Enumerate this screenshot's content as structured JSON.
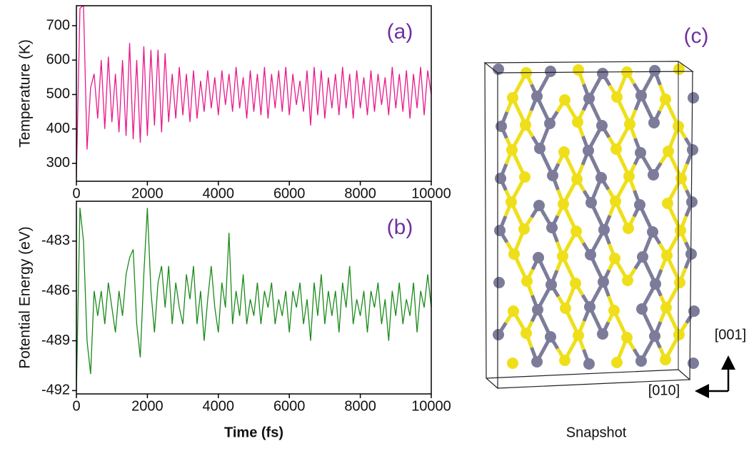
{
  "chart_data": [
    {
      "type": "line",
      "ylabel": "Temperature (K)",
      "annotation": "(a)",
      "color": "#e8198b",
      "xlim": [
        0,
        10000
      ],
      "xticks": [
        0,
        2000,
        4000,
        6000,
        8000,
        10000
      ],
      "ylim": [
        248,
        758
      ],
      "yticks": [
        300,
        400,
        500,
        600,
        700
      ],
      "x": [
        0,
        100,
        200,
        300,
        400,
        500,
        600,
        700,
        800,
        900,
        1000,
        1100,
        1200,
        1300,
        1400,
        1500,
        1600,
        1700,
        1800,
        1900,
        2000,
        2100,
        2200,
        2300,
        2400,
        2500,
        2600,
        2700,
        2800,
        2900,
        3000,
        3100,
        3200,
        3300,
        3400,
        3500,
        3600,
        3700,
        3800,
        3900,
        4000,
        4100,
        4200,
        4300,
        4400,
        4500,
        4600,
        4700,
        4800,
        4900,
        5000,
        5100,
        5200,
        5300,
        5400,
        5500,
        5600,
        5700,
        5800,
        5900,
        6000,
        6100,
        6200,
        6300,
        6400,
        6500,
        6600,
        6700,
        6800,
        6900,
        7000,
        7100,
        7200,
        7300,
        7400,
        7500,
        7600,
        7700,
        7800,
        7900,
        8000,
        8100,
        8200,
        8300,
        8400,
        8500,
        8600,
        8700,
        8800,
        8900,
        9000,
        9100,
        9200,
        9300,
        9400,
        9500,
        9600,
        9700,
        9800,
        9900,
        10000
      ],
      "values": [
        260,
        750,
        760,
        340,
        520,
        560,
        430,
        600,
        400,
        610,
        420,
        560,
        390,
        600,
        380,
        650,
        370,
        600,
        360,
        640,
        380,
        630,
        410,
        630,
        390,
        620,
        420,
        560,
        430,
        580,
        440,
        560,
        420,
        570,
        430,
        540,
        450,
        570,
        460,
        550,
        440,
        570,
        470,
        560,
        450,
        580,
        460,
        550,
        430,
        570,
        450,
        560,
        440,
        580,
        430,
        560,
        460,
        570,
        450,
        580,
        440,
        560,
        470,
        540,
        450,
        570,
        410,
        580,
        440,
        570,
        430,
        550,
        460,
        560,
        440,
        580,
        460,
        560,
        430,
        570,
        460,
        550,
        440,
        570,
        450,
        560,
        470,
        550,
        440,
        580,
        460,
        560,
        450,
        570,
        430,
        560,
        460,
        580,
        440,
        570,
        500
      ]
    },
    {
      "type": "line",
      "ylabel": "Potential Energy (eV)",
      "xlabel": "Time (fs)",
      "annotation": "(b)",
      "color": "#1a8a1a",
      "xlim": [
        0,
        10000
      ],
      "xticks": [
        0,
        2000,
        4000,
        6000,
        8000,
        10000
      ],
      "ylim": [
        -492.2,
        -480.6
      ],
      "yticks": [
        -483,
        -486,
        -489,
        -492
      ],
      "x": [
        0,
        100,
        200,
        300,
        400,
        500,
        600,
        700,
        800,
        900,
        1000,
        1100,
        1200,
        1300,
        1400,
        1500,
        1600,
        1700,
        1800,
        1900,
        2000,
        2100,
        2200,
        2300,
        2400,
        2500,
        2600,
        2700,
        2800,
        2900,
        3000,
        3100,
        3200,
        3300,
        3400,
        3500,
        3600,
        3700,
        3800,
        3900,
        4000,
        4100,
        4200,
        4300,
        4400,
        4500,
        4600,
        4700,
        4800,
        4900,
        5000,
        5100,
        5200,
        5300,
        5400,
        5500,
        5600,
        5700,
        5800,
        5900,
        6000,
        6100,
        6200,
        6300,
        6400,
        6500,
        6600,
        6700,
        6800,
        6900,
        7000,
        7100,
        7200,
        7300,
        7400,
        7500,
        7600,
        7700,
        7800,
        7900,
        8000,
        8100,
        8200,
        8300,
        8400,
        8500,
        8600,
        8700,
        8800,
        8900,
        9000,
        9100,
        9200,
        9300,
        9400,
        9500,
        9600,
        9700,
        9800,
        9900,
        10000
      ],
      "values": [
        -492,
        -481,
        -483,
        -489,
        -491,
        -486,
        -487.5,
        -486,
        -488,
        -485.5,
        -487,
        -488.5,
        -486,
        -487.5,
        -485,
        -484,
        -483.5,
        -488,
        -490,
        -485,
        -481,
        -486,
        -488.5,
        -485.5,
        -484.5,
        -487,
        -484.5,
        -488,
        -485.5,
        -487,
        -488,
        -485,
        -486.5,
        -484.5,
        -488,
        -486,
        -489,
        -486.5,
        -484.5,
        -487,
        -488.5,
        -485.5,
        -487,
        -482.5,
        -488,
        -486,
        -487.5,
        -485,
        -488,
        -486.5,
        -487.5,
        -485.5,
        -488,
        -486,
        -487,
        -485.5,
        -488,
        -486.5,
        -487.5,
        -486,
        -488.5,
        -486,
        -487,
        -485.5,
        -488,
        -486.5,
        -489,
        -485.5,
        -487.5,
        -485,
        -488,
        -486,
        -487.5,
        -486,
        -488.5,
        -485.5,
        -487,
        -484.5,
        -488,
        -486.5,
        -487.5,
        -486,
        -488.5,
        -486,
        -487,
        -485.5,
        -488,
        -486.5,
        -489,
        -486,
        -487.5,
        -485.5,
        -488,
        -486.5,
        -487.5,
        -485.5,
        -488.5,
        -486,
        -487,
        -485,
        -487
      ]
    }
  ],
  "snapshot": {
    "label": "(c)",
    "caption": "Snapshot",
    "axes": [
      "[001]",
      "[010]"
    ]
  }
}
